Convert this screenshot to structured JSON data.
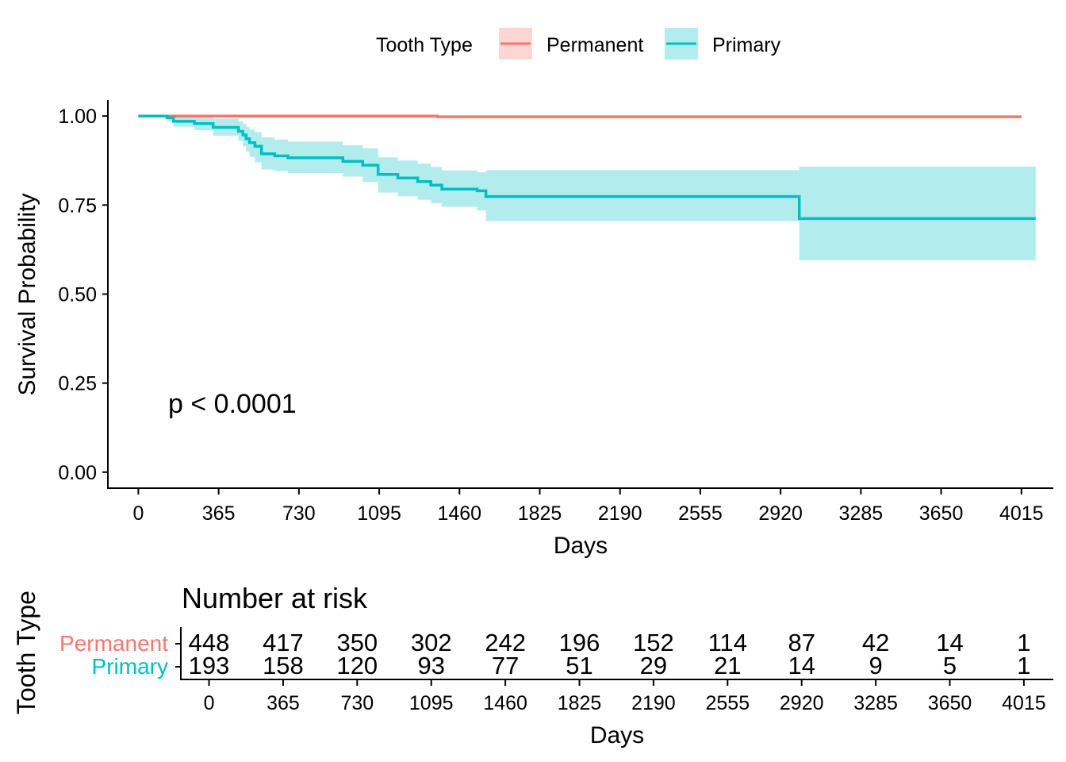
{
  "chart_data": [
    {
      "type": "line",
      "subtype": "kaplan-meier",
      "xlabel": "Days",
      "ylabel": "Survival Probability",
      "xlim": [
        -135,
        4160
      ],
      "ylim": [
        -0.045,
        1.045
      ],
      "x_ticks": [
        0,
        365,
        730,
        1095,
        1460,
        1825,
        2190,
        2555,
        2920,
        3285,
        3650,
        4015
      ],
      "y_ticks": [
        0.0,
        0.25,
        0.5,
        0.75,
        1.0
      ],
      "y_tick_labels": [
        "0.00",
        "0.25",
        "0.50",
        "0.75",
        "1.00"
      ],
      "grid": false,
      "annotation": "p < 0.0001",
      "legend": {
        "title": "Tooth Type",
        "position": "top",
        "entries": [
          "Permanent",
          "Primary"
        ]
      },
      "series": [
        {
          "name": "Permanent",
          "color": "#F8766D",
          "x": [
            0,
            1360,
            4015
          ],
          "y": [
            1.0,
            0.998,
            0.998
          ],
          "ci_lower": [
            1.0,
            0.995,
            0.995
          ],
          "ci_upper": [
            1.0,
            1.0,
            1.0
          ]
        },
        {
          "name": "Primary",
          "color": "#00BFC4",
          "x": [
            0,
            130,
            160,
            255,
            340,
            455,
            475,
            490,
            505,
            530,
            560,
            620,
            680,
            930,
            1020,
            1090,
            1180,
            1270,
            1330,
            1380,
            1540,
            1580,
            3005,
            4080
          ],
          "y": [
            1.0,
            0.995,
            0.985,
            0.979,
            0.968,
            0.957,
            0.947,
            0.936,
            0.925,
            0.915,
            0.894,
            0.888,
            0.883,
            0.873,
            0.862,
            0.836,
            0.826,
            0.816,
            0.806,
            0.795,
            0.79,
            0.774,
            0.712,
            0.712
          ],
          "ci_lower": [
            1.0,
            0.985,
            0.97,
            0.96,
            0.945,
            0.93,
            0.915,
            0.9,
            0.885,
            0.87,
            0.85,
            0.845,
            0.84,
            0.83,
            0.815,
            0.785,
            0.775,
            0.765,
            0.755,
            0.745,
            0.735,
            0.705,
            0.595,
            0.595
          ],
          "ci_upper": [
            1.0,
            1.0,
            1.0,
            0.998,
            0.993,
            0.985,
            0.978,
            0.97,
            0.962,
            0.955,
            0.94,
            0.934,
            0.928,
            0.918,
            0.909,
            0.884,
            0.875,
            0.866,
            0.857,
            0.847,
            0.842,
            0.848,
            0.858,
            0.858
          ]
        }
      ]
    },
    {
      "type": "table",
      "title": "Number at risk",
      "xlabel": "Days",
      "ylabel": "Tooth Type",
      "x": [
        0,
        365,
        730,
        1095,
        1460,
        1825,
        2190,
        2555,
        2920,
        3285,
        3650,
        4015
      ],
      "rows": [
        {
          "name": "Permanent",
          "color": "#F8766D",
          "values": [
            "448",
            "417",
            "350",
            "302",
            "242",
            "196",
            "152",
            "114",
            "87",
            "42",
            "14",
            "1"
          ]
        },
        {
          "name": "Primary",
          "color": "#00BFC4",
          "values": [
            "193",
            "158",
            "120",
            "93",
            "77",
            "51",
            "29",
            "21",
            "14",
            "9",
            "5",
            "1"
          ]
        }
      ]
    }
  ]
}
